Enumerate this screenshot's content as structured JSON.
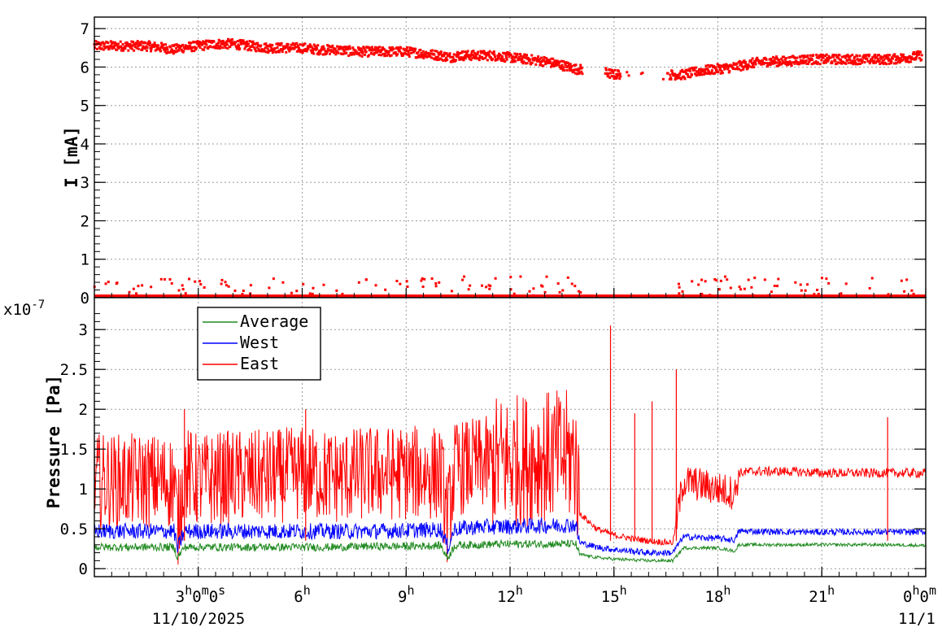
{
  "colors": {
    "average": "#228b22",
    "west": "#0000ff",
    "east": "#ff0000",
    "current": "#ff0000"
  },
  "chart_data": [
    {
      "type": "scatter",
      "ylabel": "I [mA]",
      "xlim": [
        0,
        24
      ],
      "ylim": [
        0,
        7.3
      ],
      "grid": true,
      "y_ticks": [
        "0",
        "1",
        "2",
        "3",
        "4",
        "5",
        "6",
        "7"
      ],
      "series": [
        {
          "color": "current",
          "x": [
            0,
            0.5,
            1,
            1.5,
            2,
            2.3,
            2.5,
            3,
            3.5,
            4,
            4.5,
            5,
            5.5,
            6,
            6.5,
            7,
            7.5,
            8,
            8.5,
            9,
            9.5,
            10,
            10.3,
            10.5,
            11,
            11.5,
            12,
            12.5,
            13,
            13.5,
            13.9,
            14.8,
            15.0,
            15.5,
            16.0,
            16.7,
            17.0,
            17.5,
            18.0,
            18.5,
            19.0,
            19.5,
            20.0,
            20.5,
            21.0,
            21.5,
            22.0,
            22.5,
            23.0,
            23.5,
            23.9
          ],
          "y": [
            6.55,
            6.55,
            6.55,
            6.55,
            6.5,
            6.45,
            6.5,
            6.55,
            6.6,
            6.6,
            6.55,
            6.5,
            6.5,
            6.5,
            6.45,
            6.45,
            6.4,
            6.4,
            6.4,
            6.4,
            6.35,
            6.3,
            6.25,
            6.3,
            6.3,
            6.3,
            6.25,
            6.2,
            6.15,
            6.05,
            5.95,
            5.85,
            5.8,
            5.85,
            5.8,
            5.8,
            5.8,
            5.9,
            5.95,
            6.0,
            6.1,
            6.15,
            6.15,
            6.2,
            6.2,
            6.2,
            6.2,
            6.2,
            6.2,
            6.25,
            6.3
          ]
        }
      ]
    },
    {
      "type": "line",
      "ylabel": "Pressure [Pa]",
      "y_exponent": "x10",
      "y_exponent_power": "-7",
      "xlim": [
        0,
        24
      ],
      "ylim": [
        -0.1,
        3.4
      ],
      "grid": true,
      "legend_position": "top-left",
      "y_ticks": [
        "0",
        "0.5",
        "1",
        "1.5",
        "2",
        "2.5",
        "3"
      ],
      "x_ticks": [
        {
          "x": 3,
          "label": "3",
          "sup": "h",
          "extra": "0",
          "extra_sup": "m",
          "extra2": "0",
          "extra2_sup": "s"
        },
        {
          "x": 6,
          "label": "6",
          "sup": "h"
        },
        {
          "x": 9,
          "label": "9",
          "sup": "h"
        },
        {
          "x": 12,
          "label": "12",
          "sup": "h"
        },
        {
          "x": 15,
          "label": "15",
          "sup": "h"
        },
        {
          "x": 18,
          "label": "18",
          "sup": "h"
        },
        {
          "x": 21,
          "label": "21",
          "sup": "h"
        },
        {
          "x": 24,
          "label": "0",
          "sup": "h",
          "extra": "0",
          "extra_sup": "m"
        }
      ],
      "date_labels": [
        "11/10/2025",
        "11/1"
      ],
      "series": [
        {
          "name": "Average",
          "color": "average",
          "x": [
            0,
            1,
            2,
            2.3,
            2.4,
            2.6,
            3,
            4,
            5,
            6,
            7,
            8,
            9,
            10,
            10.2,
            10.4,
            11,
            12,
            13,
            13.9,
            14.0,
            14.5,
            15,
            15.5,
            16,
            16.5,
            16.7,
            17.0,
            18,
            18.5,
            18.6,
            19,
            20,
            21,
            22,
            23,
            24
          ],
          "y": [
            0.27,
            0.27,
            0.27,
            0.27,
            0.14,
            0.27,
            0.27,
            0.27,
            0.27,
            0.27,
            0.27,
            0.28,
            0.28,
            0.29,
            0.13,
            0.29,
            0.3,
            0.31,
            0.31,
            0.31,
            0.18,
            0.14,
            0.12,
            0.11,
            0.1,
            0.1,
            0.1,
            0.26,
            0.26,
            0.22,
            0.3,
            0.3,
            0.3,
            0.3,
            0.3,
            0.3,
            0.29
          ]
        },
        {
          "name": "West",
          "color": "west",
          "x": [
            0,
            1,
            2,
            2.3,
            2.4,
            2.6,
            3,
            4,
            5,
            6,
            7,
            8,
            9,
            10,
            10.2,
            10.4,
            11,
            12,
            13,
            13.9,
            14.0,
            14.5,
            15,
            15.5,
            16,
            16.5,
            16.7,
            17.0,
            18,
            18.5,
            18.6,
            19,
            20,
            21,
            22,
            23,
            24
          ],
          "y": [
            0.47,
            0.47,
            0.47,
            0.47,
            0.25,
            0.47,
            0.47,
            0.47,
            0.47,
            0.47,
            0.47,
            0.47,
            0.48,
            0.49,
            0.27,
            0.5,
            0.52,
            0.53,
            0.54,
            0.55,
            0.33,
            0.27,
            0.24,
            0.22,
            0.2,
            0.2,
            0.2,
            0.4,
            0.38,
            0.36,
            0.47,
            0.47,
            0.46,
            0.46,
            0.46,
            0.46,
            0.46
          ]
        },
        {
          "name": "East",
          "color": "east",
          "x": [
            0,
            1,
            2,
            2.3,
            2.4,
            2.6,
            3,
            4,
            5,
            6,
            7,
            8,
            9,
            10,
            10.2,
            10.4,
            11,
            12,
            13,
            13.9,
            14.0,
            14.5,
            15,
            15.5,
            16,
            16.5,
            16.7,
            17.0,
            18,
            18.5,
            18.6,
            19,
            20,
            21,
            22,
            23,
            24
          ],
          "y": [
            1.1,
            1.1,
            1.1,
            1.1,
            0.55,
            1.2,
            1.1,
            1.15,
            1.15,
            1.2,
            1.15,
            1.2,
            1.2,
            1.2,
            0.6,
            1.25,
            1.3,
            1.35,
            1.4,
            1.4,
            0.7,
            0.5,
            0.42,
            0.38,
            0.35,
            0.33,
            0.33,
            1.1,
            1.0,
            0.95,
            1.2,
            1.22,
            1.22,
            1.2,
            1.2,
            1.2,
            1.2
          ]
        }
      ]
    }
  ]
}
